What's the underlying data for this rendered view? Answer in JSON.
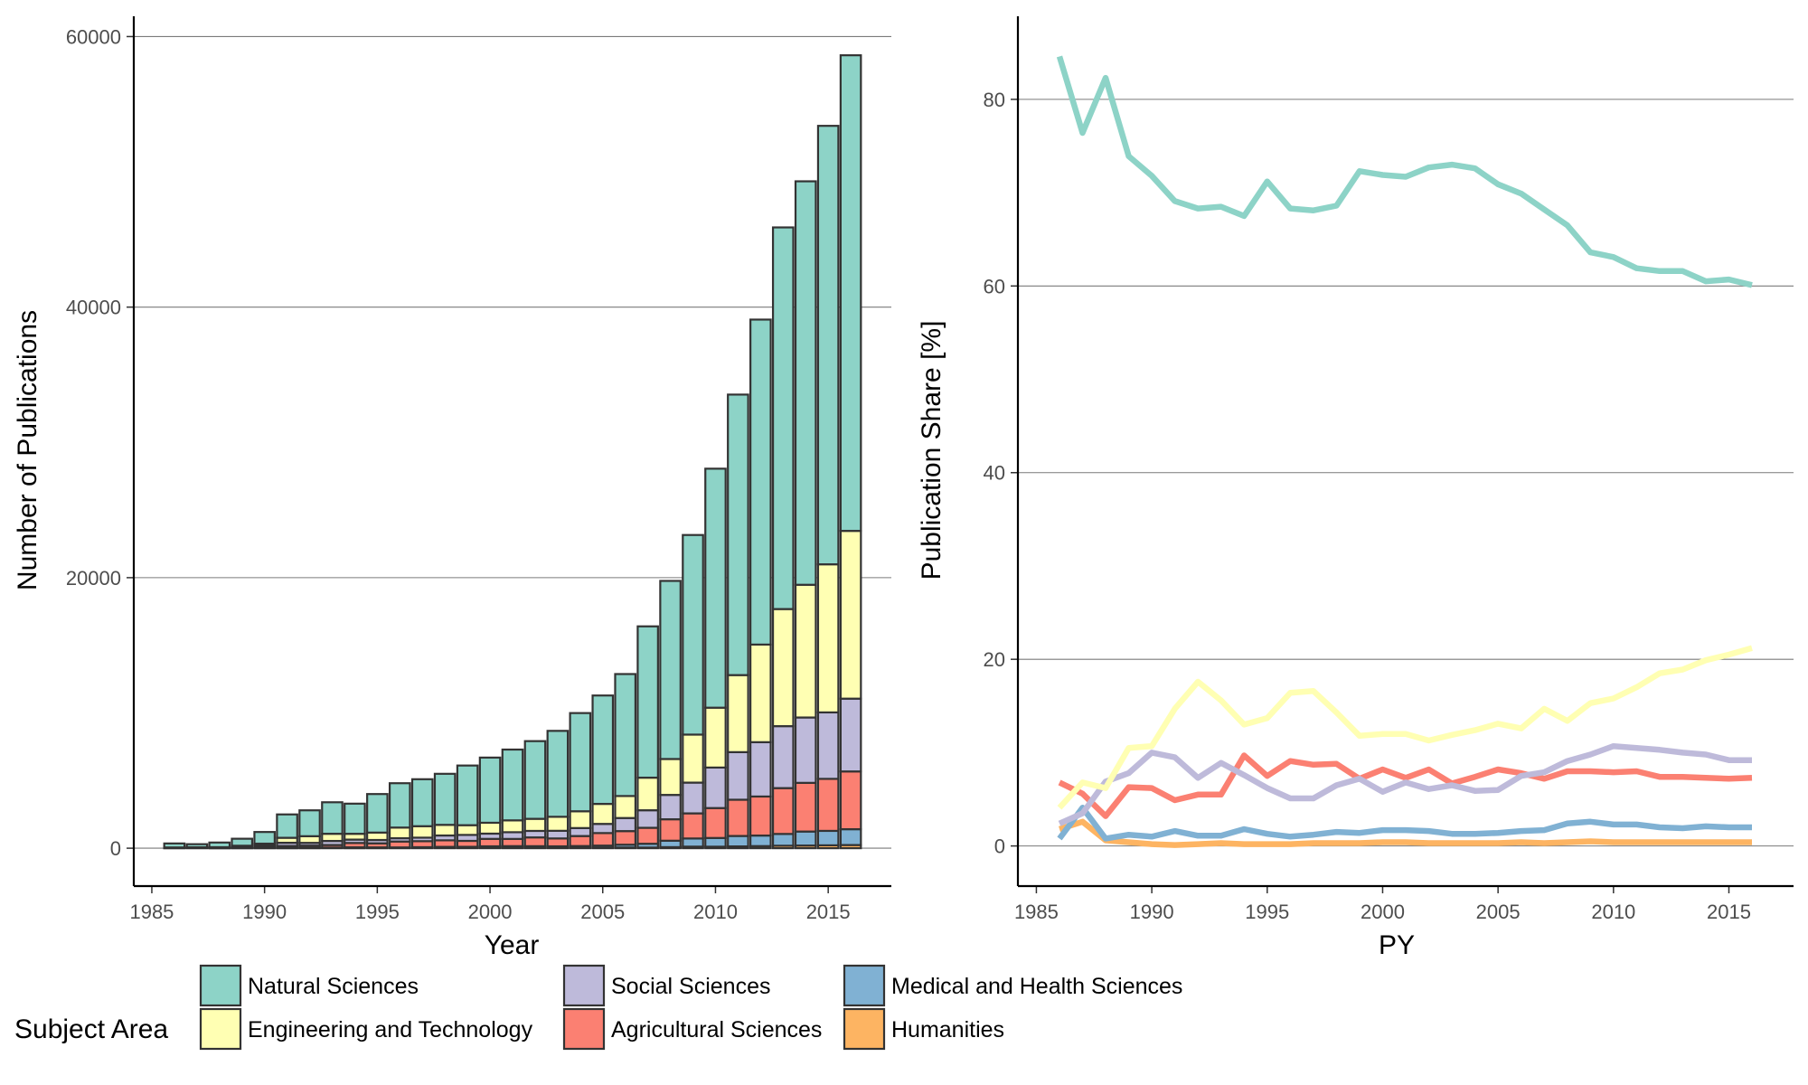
{
  "chart_data": [
    {
      "type": "bar",
      "stacked": true,
      "xlabel": "Year",
      "ylabel": "Number of Publications",
      "xlim": [
        1984.2,
        2017.8
      ],
      "ylim": [
        -2800,
        61500
      ],
      "xticks": [
        1985,
        1990,
        1995,
        2000,
        2005,
        2010,
        2015
      ],
      "yticks": [
        0,
        20000,
        40000,
        60000
      ],
      "grid": "horizontal-major",
      "x": [
        1986,
        1987,
        1988,
        1989,
        1990,
        1991,
        1992,
        1993,
        1994,
        1995,
        1996,
        1997,
        1998,
        1999,
        2000,
        2001,
        2002,
        2003,
        2004,
        2005,
        2006,
        2007,
        2008,
        2009,
        2010,
        2011,
        2012,
        2013,
        2014,
        2015,
        2016
      ],
      "totals": [
        350,
        300,
        420,
        700,
        1200,
        2500,
        2800,
        3400,
        3300,
        4000,
        4800,
        5100,
        5500,
        6100,
        6700,
        7300,
        7900,
        8700,
        10000,
        11300,
        12900,
        16400,
        19800,
        23200,
        28000,
        33500,
        39000,
        45800,
        49300,
        53400,
        58500
      ],
      "series": [
        {
          "name": "Natural Sciences",
          "color": "#8DD3C7",
          "share": [
            84.6,
            76.4,
            82.3,
            73.9,
            71.8,
            69.1,
            68.3,
            68.5,
            67.5,
            71.2,
            68.3,
            68.1,
            68.6,
            72.3,
            71.9,
            71.7,
            72.7,
            73.0,
            72.6,
            70.9,
            69.9,
            68.2,
            66.5,
            63.6,
            63.1,
            61.9,
            61.6,
            61.6,
            60.5,
            60.7,
            60.1
          ]
        },
        {
          "name": "Engineering and Technology",
          "color": "#FFFFB3",
          "share": [
            4.1,
            6.8,
            6.2,
            10.5,
            10.7,
            14.7,
            17.6,
            15.6,
            13.0,
            13.7,
            16.4,
            16.6,
            14.3,
            11.8,
            12.0,
            12.0,
            11.3,
            11.9,
            12.4,
            13.1,
            12.6,
            14.7,
            13.4,
            15.3,
            15.8,
            17.0,
            18.5,
            18.9,
            19.9,
            20.5,
            21.2
          ]
        },
        {
          "name": "Social Sciences",
          "color": "#BEBADA",
          "share": [
            2.4,
            3.5,
            6.9,
            7.8,
            10.0,
            9.5,
            7.3,
            8.9,
            7.6,
            6.2,
            5.1,
            5.1,
            6.5,
            7.2,
            5.8,
            6.8,
            6.1,
            6.5,
            5.9,
            6.0,
            7.5,
            7.9,
            9.1,
            9.8,
            10.7,
            10.5,
            10.3,
            10.0,
            9.8,
            9.2,
            9.2
          ]
        },
        {
          "name": "Agricultural Sciences",
          "color": "#FB8072",
          "share": [
            6.8,
            5.6,
            3.2,
            6.3,
            6.2,
            4.9,
            5.5,
            5.5,
            9.7,
            7.5,
            9.1,
            8.7,
            8.8,
            7.2,
            8.2,
            7.3,
            8.2,
            6.7,
            7.4,
            8.2,
            7.8,
            7.2,
            8.0,
            8.0,
            7.9,
            8.0,
            7.4,
            7.4,
            7.3,
            7.2,
            7.3
          ]
        },
        {
          "name": "Medical and Health Sciences",
          "color": "#80B1D3",
          "share": [
            0.8,
            4.1,
            0.8,
            1.2,
            1.0,
            1.6,
            1.1,
            1.1,
            1.8,
            1.3,
            1.0,
            1.2,
            1.5,
            1.4,
            1.7,
            1.7,
            1.6,
            1.3,
            1.3,
            1.4,
            1.6,
            1.7,
            2.4,
            2.6,
            2.3,
            2.3,
            2.0,
            1.9,
            2.1,
            2.0,
            2.0
          ]
        },
        {
          "name": "Humanities",
          "color": "#FDB462",
          "share": [
            1.8,
            2.6,
            0.6,
            0.4,
            0.2,
            0.1,
            0.2,
            0.3,
            0.2,
            0.2,
            0.2,
            0.3,
            0.3,
            0.3,
            0.4,
            0.4,
            0.3,
            0.3,
            0.3,
            0.3,
            0.4,
            0.3,
            0.4,
            0.5,
            0.4,
            0.4,
            0.4,
            0.4,
            0.4,
            0.4,
            0.4
          ]
        }
      ]
    },
    {
      "type": "line",
      "xlabel": "PY",
      "ylabel": "Publication Share [%]",
      "xlim": [
        1984.2,
        2017.8
      ],
      "ylim": [
        -4.3,
        88.9
      ],
      "xticks": [
        1985,
        1990,
        1995,
        2000,
        2005,
        2010,
        2015
      ],
      "yticks": [
        0,
        20,
        40,
        60,
        80
      ],
      "grid": "horizontal-major",
      "series_from_chart": 0
    }
  ],
  "legend": {
    "title": "Subject Area",
    "placement": "bottom-left",
    "items": [
      "Natural Sciences",
      "Engineering and Technology",
      "Social Sciences",
      "Agricultural Sciences",
      "Medical and Health Sciences",
      "Humanities"
    ]
  }
}
